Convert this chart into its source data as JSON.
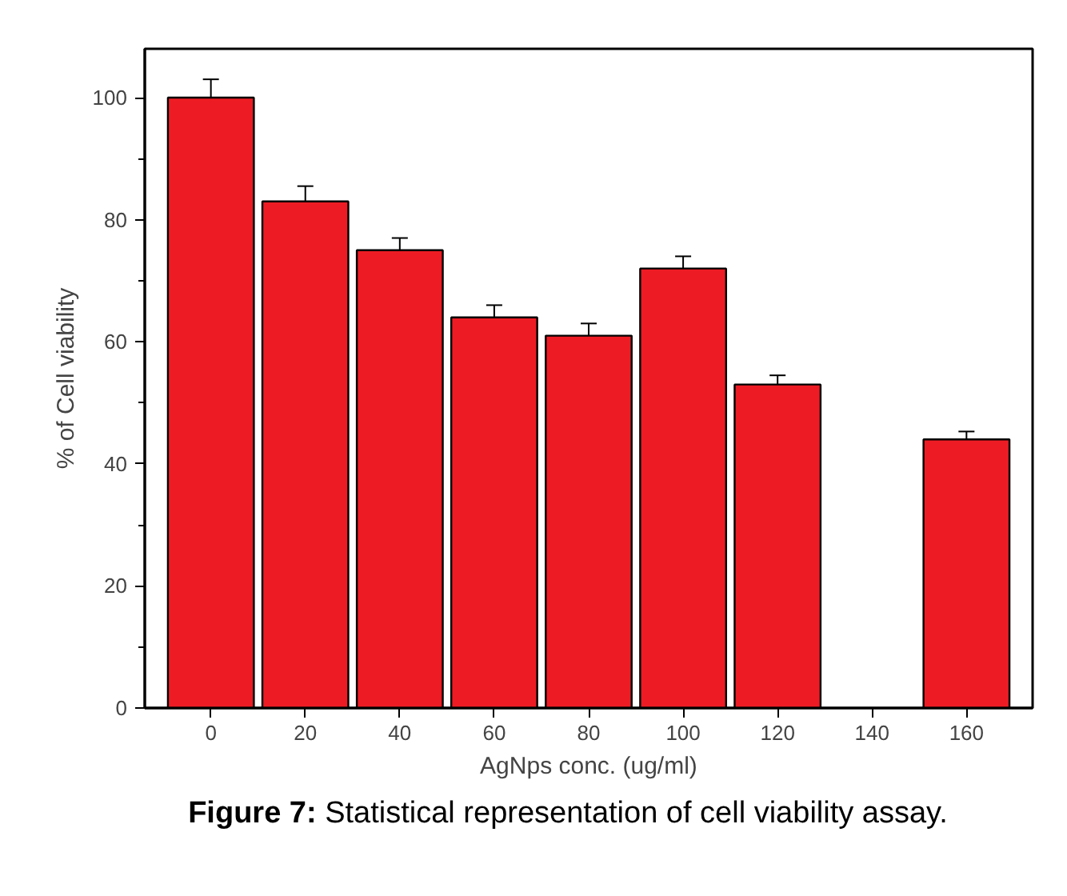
{
  "chart_data": {
    "type": "bar",
    "xlabel": "AgNps conc. (ug/ml)",
    "ylabel": "% of Cell viability",
    "x": [
      0,
      20,
      40,
      60,
      80,
      100,
      120,
      140,
      160
    ],
    "values": [
      100,
      83,
      75,
      64,
      61,
      72,
      53,
      null,
      44
    ],
    "errors": [
      3,
      2.5,
      2,
      2,
      2,
      2,
      1.5,
      null,
      1.3
    ],
    "color": "#ed1c24",
    "xlim": [
      -14,
      174
    ],
    "xticks": [
      0,
      20,
      40,
      60,
      80,
      100,
      120,
      140,
      160
    ],
    "ylim": [
      0,
      108
    ],
    "yticks": [
      0,
      20,
      40,
      60,
      80,
      100
    ],
    "grid": false,
    "annotations": [
      "Figure 7: Statistical representation of cell viability assay."
    ]
  }
}
